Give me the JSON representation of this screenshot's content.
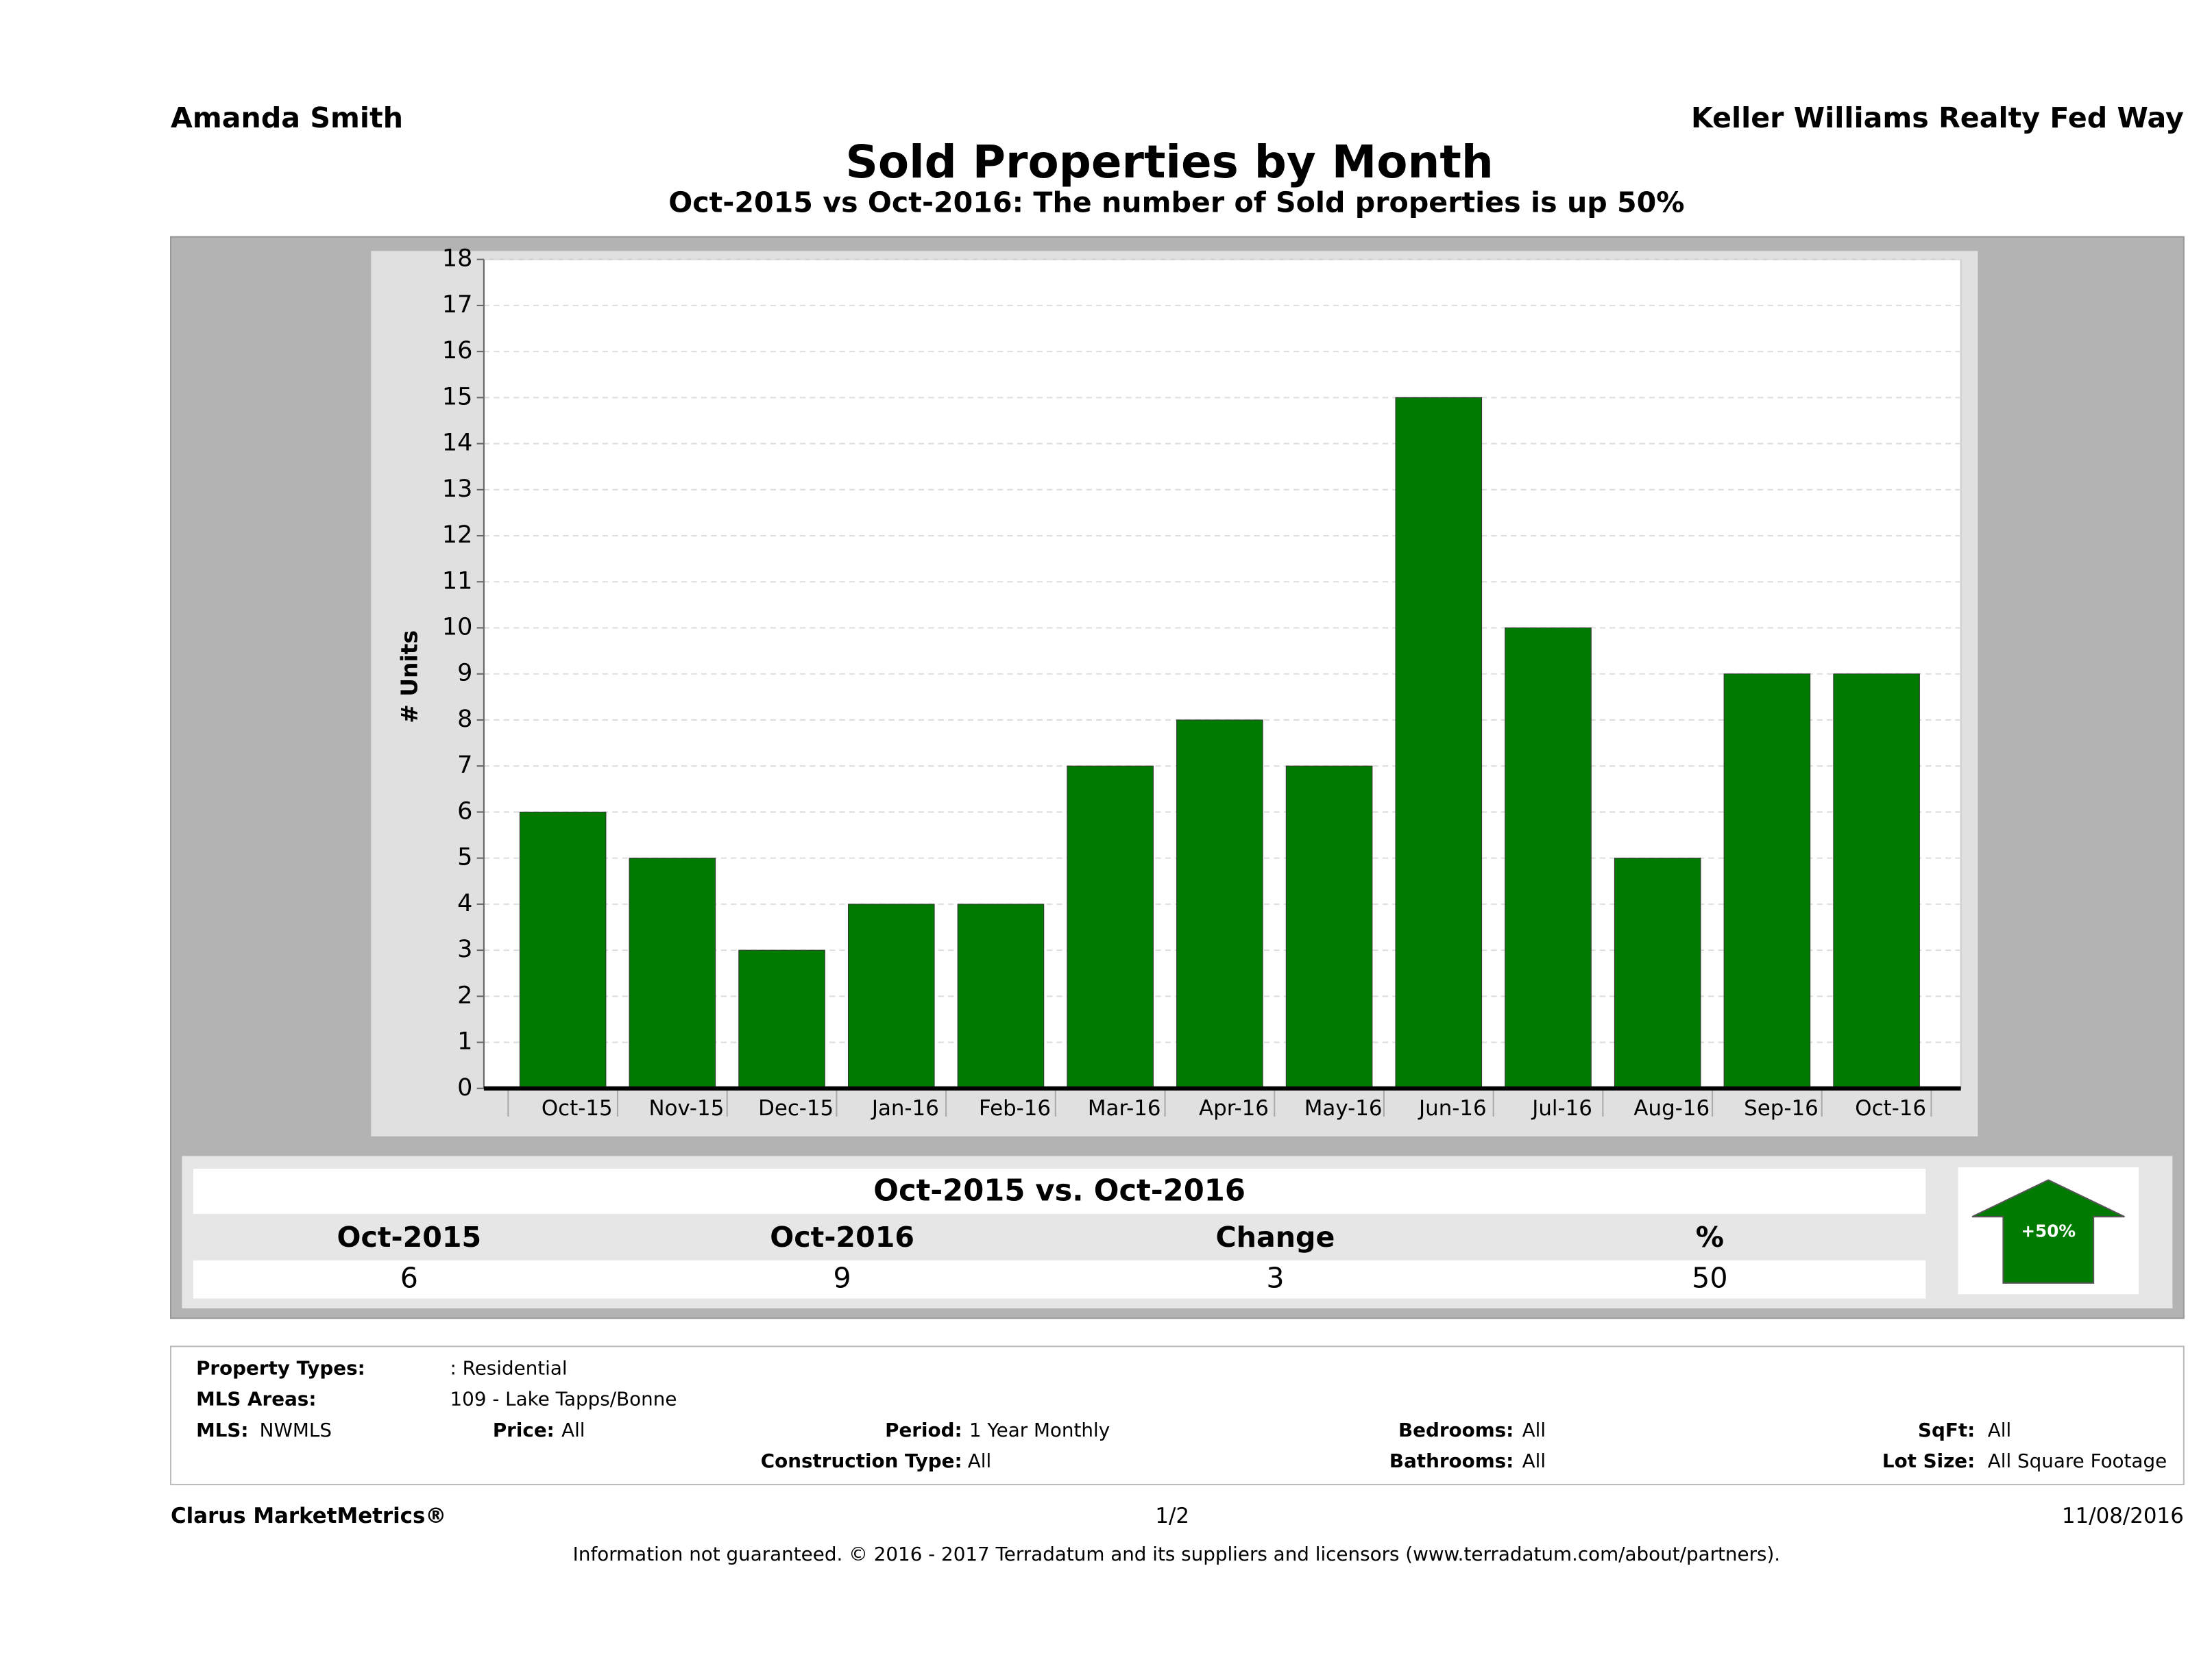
{
  "header": {
    "agent": "Amanda Smith",
    "brokerage": "Keller Williams Realty Fed Way"
  },
  "chart_data": {
    "type": "bar",
    "title": "Sold Properties by Month",
    "subtitle": "Oct-2015 vs Oct-2016: The number of Sold  properties is up 50%",
    "ylabel": "# Units",
    "categories": [
      "Oct-15",
      "Nov-15",
      "Dec-15",
      "Jan-16",
      "Feb-16",
      "Mar-16",
      "Apr-16",
      "May-16",
      "Jun-16",
      "Jul-16",
      "Aug-16",
      "Sep-16",
      "Oct-16"
    ],
    "values": [
      6,
      5,
      3,
      4,
      4,
      7,
      8,
      7,
      15,
      10,
      5,
      9,
      9
    ],
    "color": "#007a00",
    "ylim": [
      0,
      18
    ],
    "yticks": [
      0,
      1,
      2,
      3,
      4,
      5,
      6,
      7,
      8,
      9,
      10,
      11,
      12,
      13,
      14,
      15,
      16,
      17,
      18
    ],
    "grid": true
  },
  "summary": {
    "title": "Oct-2015 vs. Oct-2016",
    "headers": [
      "Oct-2015",
      "Oct-2016",
      "Change",
      "%"
    ],
    "values": [
      "6",
      "9",
      "3",
      "50"
    ],
    "badge": "+50%"
  },
  "criteria": [
    {
      "label": "Property Types:",
      "value": ": Residential"
    },
    {
      "label": "MLS Areas:",
      "value": "109 - Lake Tapps/Bonne"
    },
    {
      "label": "MLS:",
      "value": "NWMLS"
    },
    {
      "label": "Price:",
      "value": "All"
    },
    {
      "label": "Period:",
      "value": "1 Year Monthly"
    },
    {
      "label": "Bedrooms:",
      "value": "All"
    },
    {
      "label": "SqFt:",
      "value": "All"
    },
    {
      "label": "Construction Type:",
      "value": "All"
    },
    {
      "label": "Bathrooms:",
      "value": "All"
    },
    {
      "label": "Lot Size:",
      "value": "All Square Footage"
    }
  ],
  "footer": {
    "brand": "Clarus MarketMetrics®",
    "page": "1/2",
    "date": "11/08/2016",
    "disclaimer": "Information not guaranteed. © 2016 - 2017 Terradatum and its suppliers and licensors (www.terradatum.com/about/partners)."
  }
}
